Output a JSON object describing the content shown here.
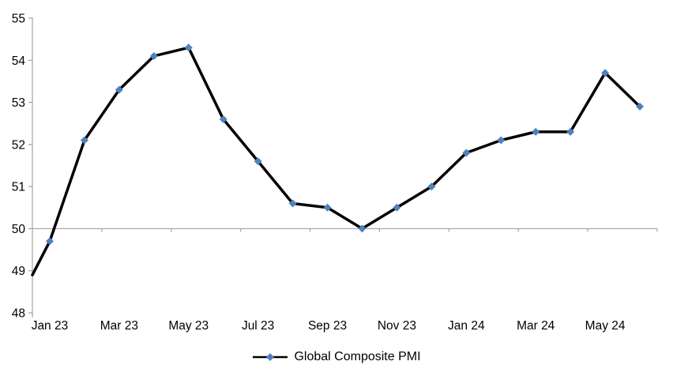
{
  "chart_data": {
    "type": "line",
    "title": "",
    "xlabel": "",
    "ylabel": "",
    "categories": [
      "Jan 23",
      "Feb 23",
      "Mar 23",
      "Apr 23",
      "May 23",
      "Jun 23",
      "Jul 23",
      "Aug 23",
      "Sep 23",
      "Oct 23",
      "Nov 23",
      "Dec 23",
      "Jan 24",
      "Feb 24",
      "Mar 24",
      "Apr 24",
      "May 24",
      "Jun 24"
    ],
    "series": [
      {
        "name": "Global Composite PMI",
        "values": [
          49.7,
          52.1,
          53.3,
          54.1,
          54.3,
          52.6,
          51.6,
          50.6,
          50.5,
          50.0,
          50.5,
          51.0,
          51.8,
          52.1,
          52.3,
          52.3,
          53.7,
          52.9
        ],
        "edge_lead_in_value_at_axis": 48.9,
        "line_color": "#000000",
        "line_width": 3.5,
        "marker": "diamond",
        "marker_color": "#4F81BD",
        "marker_size": 10
      }
    ],
    "x_tick_labels_visible": [
      "Jan 23",
      "Mar 23",
      "May 23",
      "Jul 23",
      "Sep 23",
      "Nov 23",
      "Jan 24",
      "Mar 24",
      "May 24"
    ],
    "x_label_every": 2,
    "y_axis": {
      "min": 48,
      "max": 55,
      "step": 1,
      "tick_labels": [
        "48",
        "49",
        "50",
        "51",
        "52",
        "53",
        "54",
        "55"
      ]
    },
    "category_axis_cross_value": 50,
    "axis_color": "#A3A3A3",
    "grid": "off",
    "legend": {
      "label": "Global Composite PMI",
      "position": "bottom-center"
    }
  }
}
